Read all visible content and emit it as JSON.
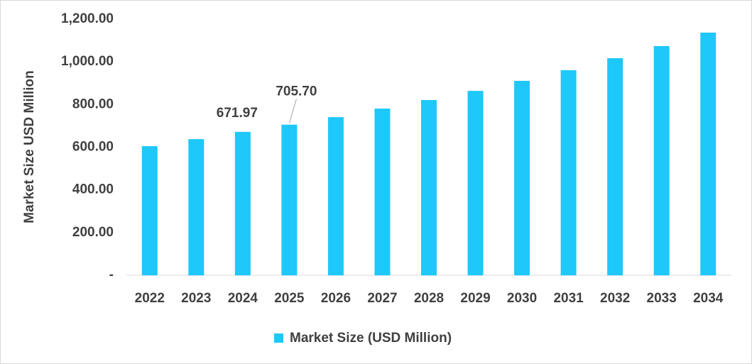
{
  "chart_data": {
    "type": "bar",
    "y_axis_label": "Market Size USD Million",
    "categories": [
      "2022",
      "2023",
      "2024",
      "2025",
      "2026",
      "2027",
      "2028",
      "2029",
      "2030",
      "2031",
      "2032",
      "2033",
      "2034"
    ],
    "series": [
      {
        "name": "Market Size (USD Million)",
        "color": "#1ec8fa",
        "values": [
          605,
          638,
          671.97,
          705.7,
          741,
          781,
          821,
          864,
          911,
          961,
          1017,
          1074,
          1137
        ],
        "value_labels": [
          null,
          null,
          "671.97",
          "705.70",
          null,
          null,
          null,
          null,
          null,
          null,
          null,
          null,
          null
        ]
      }
    ],
    "ylim": [
      0,
      1200
    ],
    "yticks": [
      {
        "value": 0,
        "label": "-"
      },
      {
        "value": 200,
        "label": "200.00"
      },
      {
        "value": 400,
        "label": "400.00"
      },
      {
        "value": 600,
        "label": "600.00"
      },
      {
        "value": 800,
        "label": "800.00"
      },
      {
        "value": 1000,
        "label": "1,000.00"
      },
      {
        "value": 1200,
        "label": "1,200.00"
      }
    ],
    "grid": false,
    "legend": "bottom"
  }
}
